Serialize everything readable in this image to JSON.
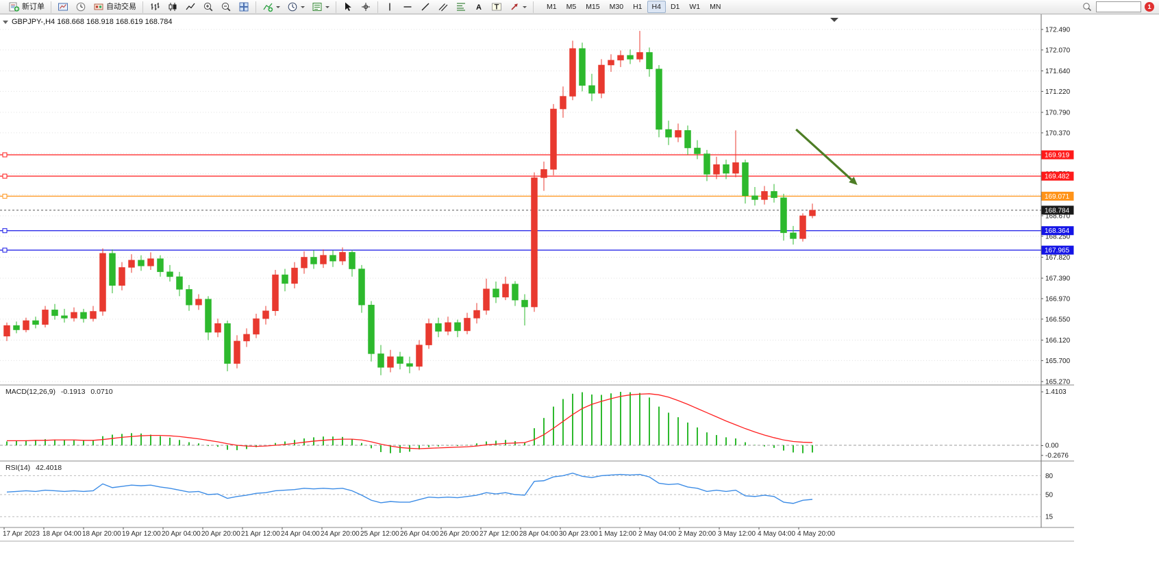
{
  "toolbar": {
    "groups": [
      {
        "items": [
          {
            "name": "new-order-button",
            "icon": "new-order-icon",
            "label": "新订单"
          }
        ]
      },
      {
        "items": [
          {
            "name": "charts-button",
            "icon": "chart-window-icon"
          },
          {
            "name": "market-watch-button",
            "icon": "market-watch-icon"
          },
          {
            "name": "autotrade-button",
            "icon": "autotrade-icon",
            "label": "自动交易"
          }
        ]
      },
      {
        "items": [
          {
            "name": "bar-chart-button",
            "icon": "bar-chart-icon"
          },
          {
            "name": "candlestick-chart-button",
            "icon": "candle-chart-icon"
          },
          {
            "name": "line-chart-button",
            "icon": "line-chart-icon"
          },
          {
            "name": "zoom-in-button",
            "icon": "zoom-in-icon"
          },
          {
            "name": "zoom-out-button",
            "icon": "zoom-out-icon"
          },
          {
            "name": "tile-windows-button",
            "icon": "tile-windows-icon"
          }
        ]
      },
      {
        "items": [
          {
            "name": "indicators-button",
            "icon": "indicators-icon",
            "dropdown": true
          },
          {
            "name": "periods-button",
            "icon": "periods-icon",
            "dropdown": true
          },
          {
            "name": "templates-button",
            "icon": "templates-icon",
            "dropdown": true
          }
        ]
      },
      {
        "items": [
          {
            "name": "cursor-button",
            "icon": "cursor-icon"
          },
          {
            "name": "crosshair-button",
            "icon": "crosshair-icon"
          }
        ]
      },
      {
        "items": [
          {
            "name": "vertical-line-button",
            "icon": "vertical-line-icon"
          },
          {
            "name": "horizontal-line-button",
            "icon": "horizontal-line-icon"
          },
          {
            "name": "trendline-button",
            "icon": "trendline-icon"
          },
          {
            "name": "channel-button",
            "icon": "channel-icon"
          },
          {
            "name": "fibonacci-button",
            "icon": "fibonacci-icon"
          },
          {
            "name": "text-button",
            "icon": "text-icon"
          },
          {
            "name": "text-label-button",
            "icon": "text-label-icon"
          },
          {
            "name": "arrows-button",
            "icon": "arrows-icon",
            "dropdown": true
          }
        ]
      }
    ],
    "timeframes": [
      "M1",
      "M5",
      "M15",
      "M30",
      "H1",
      "H4",
      "D1",
      "W1",
      "MN"
    ],
    "active_timeframe": "H4",
    "search_placeholder": "",
    "notification_count": "1"
  },
  "chart_data": [
    {
      "type": "candlestick",
      "title": "GBPJPY-,H4",
      "symbol_ohlc_label": "GBPJPY-,H4 168.668 168.918 168.619 168.784",
      "timeframe": "H4",
      "up_color": "#e8392f",
      "down_color": "#2db92d",
      "ylim": [
        165.17,
        172.8
      ],
      "y_ticks": [
        172.49,
        172.07,
        171.64,
        171.22,
        170.79,
        170.37,
        169.95,
        169.53,
        169.1,
        168.67,
        168.25,
        167.82,
        167.39,
        166.97,
        166.55,
        166.12,
        165.7,
        165.27
      ],
      "x_labels": [
        "17 Apr 2023",
        "18 Apr 04:00",
        "18 Apr 20:00",
        "19 Apr 12:00",
        "20 Apr 04:00",
        "20 Apr 20:00",
        "21 Apr 12:00",
        "24 Apr 04:00",
        "24 Apr 20:00",
        "25 Apr 12:00",
        "26 Apr 04:00",
        "26 Apr 20:00",
        "27 Apr 12:00",
        "28 Apr 04:00",
        "30 Apr 23:00",
        "1 May 12:00",
        "2 May 04:00",
        "2 May 20:00",
        "3 May 12:00",
        "4 May 04:00",
        "4 May 20:00"
      ],
      "ohlc": [
        [
          166.2,
          166.48,
          166.1,
          166.42
        ],
        [
          166.42,
          166.5,
          166.26,
          166.33
        ],
        [
          166.33,
          166.58,
          166.28,
          166.52
        ],
        [
          166.52,
          166.6,
          166.36,
          166.44
        ],
        [
          166.44,
          166.82,
          166.38,
          166.74
        ],
        [
          166.74,
          166.86,
          166.54,
          166.62
        ],
        [
          166.62,
          166.76,
          166.48,
          166.57
        ],
        [
          166.57,
          166.79,
          166.5,
          166.69
        ],
        [
          166.69,
          166.76,
          166.48,
          166.56
        ],
        [
          166.56,
          166.82,
          166.5,
          166.71
        ],
        [
          166.71,
          168.0,
          166.62,
          167.9
        ],
        [
          167.9,
          167.98,
          167.08,
          167.24
        ],
        [
          167.24,
          167.72,
          167.14,
          167.61
        ],
        [
          167.61,
          167.88,
          167.5,
          167.76
        ],
        [
          167.76,
          167.86,
          167.54,
          167.64
        ],
        [
          167.64,
          167.92,
          167.56,
          167.79
        ],
        [
          167.79,
          167.86,
          167.42,
          167.52
        ],
        [
          167.52,
          167.66,
          167.32,
          167.42
        ],
        [
          167.42,
          167.52,
          167.02,
          167.16
        ],
        [
          167.16,
          167.25,
          166.72,
          166.84
        ],
        [
          166.84,
          167.06,
          166.74,
          166.96
        ],
        [
          166.96,
          167.02,
          166.12,
          166.28
        ],
        [
          166.28,
          166.56,
          166.18,
          166.46
        ],
        [
          166.46,
          166.52,
          165.48,
          165.64
        ],
        [
          165.64,
          166.22,
          165.54,
          166.1
        ],
        [
          166.1,
          166.36,
          165.98,
          166.24
        ],
        [
          166.24,
          166.66,
          166.16,
          166.56
        ],
        [
          166.56,
          166.82,
          166.44,
          166.72
        ],
        [
          166.72,
          167.56,
          166.62,
          167.46
        ],
        [
          167.46,
          167.58,
          167.12,
          167.28
        ],
        [
          167.28,
          167.72,
          167.18,
          167.6
        ],
        [
          167.6,
          167.94,
          167.48,
          167.82
        ],
        [
          167.82,
          167.96,
          167.58,
          167.68
        ],
        [
          167.68,
          167.98,
          167.6,
          167.86
        ],
        [
          167.86,
          167.96,
          167.62,
          167.74
        ],
        [
          167.74,
          168.02,
          167.66,
          167.92
        ],
        [
          167.92,
          167.97,
          167.42,
          167.58
        ],
        [
          167.58,
          167.66,
          166.68,
          166.84
        ],
        [
          166.84,
          166.92,
          165.68,
          165.84
        ],
        [
          165.84,
          166.02,
          165.4,
          165.56
        ],
        [
          165.56,
          165.92,
          165.46,
          165.78
        ],
        [
          165.78,
          165.88,
          165.52,
          165.64
        ],
        [
          165.64,
          165.78,
          165.44,
          165.58
        ],
        [
          165.58,
          166.12,
          165.5,
          166.02
        ],
        [
          166.02,
          166.56,
          165.94,
          166.46
        ],
        [
          166.46,
          166.58,
          166.18,
          166.3
        ],
        [
          166.3,
          166.6,
          166.22,
          166.48
        ],
        [
          166.48,
          166.54,
          166.18,
          166.31
        ],
        [
          166.31,
          166.68,
          166.24,
          166.57
        ],
        [
          166.57,
          166.88,
          166.46,
          166.73
        ],
        [
          166.73,
          167.38,
          166.64,
          167.17
        ],
        [
          167.17,
          167.32,
          166.88,
          167.0
        ],
        [
          167.0,
          167.42,
          166.94,
          167.27
        ],
        [
          167.27,
          167.33,
          166.82,
          166.94
        ],
        [
          166.94,
          167.06,
          166.42,
          166.8
        ],
        [
          166.8,
          169.56,
          166.7,
          169.45
        ],
        [
          169.45,
          169.78,
          169.18,
          169.62
        ],
        [
          169.62,
          170.96,
          169.5,
          170.86
        ],
        [
          170.86,
          171.32,
          170.68,
          171.12
        ],
        [
          171.12,
          172.26,
          171.04,
          172.1
        ],
        [
          172.1,
          172.22,
          171.22,
          171.34
        ],
        [
          171.34,
          171.58,
          171.02,
          171.18
        ],
        [
          171.18,
          171.88,
          171.08,
          171.76
        ],
        [
          171.76,
          171.98,
          171.62,
          171.86
        ],
        [
          171.86,
          172.06,
          171.72,
          171.96
        ],
        [
          171.96,
          172.08,
          171.78,
          171.88
        ],
        [
          171.88,
          172.46,
          171.82,
          172.02
        ],
        [
          172.02,
          172.12,
          171.52,
          171.68
        ],
        [
          171.68,
          171.76,
          170.28,
          170.44
        ],
        [
          170.44,
          170.62,
          170.12,
          170.28
        ],
        [
          170.28,
          170.56,
          170.18,
          170.42
        ],
        [
          170.42,
          170.52,
          169.92,
          170.06
        ],
        [
          170.06,
          170.22,
          169.83,
          169.94
        ],
        [
          169.94,
          170.02,
          169.38,
          169.52
        ],
        [
          169.52,
          169.88,
          169.42,
          169.72
        ],
        [
          169.72,
          169.82,
          169.42,
          169.54
        ],
        [
          169.54,
          170.42,
          169.46,
          169.76
        ],
        [
          169.76,
          169.82,
          168.92,
          169.08
        ],
        [
          169.08,
          169.26,
          168.88,
          169.0
        ],
        [
          169.0,
          169.28,
          168.9,
          169.17
        ],
        [
          169.17,
          169.32,
          168.94,
          169.04
        ],
        [
          169.04,
          169.12,
          168.16,
          168.32
        ],
        [
          168.32,
          168.46,
          168.08,
          168.2
        ],
        [
          168.2,
          168.72,
          168.14,
          168.67
        ],
        [
          168.668,
          168.918,
          168.619,
          168.784
        ]
      ],
      "hlines": [
        {
          "price": 169.919,
          "color": "#ff1a1a",
          "kind": "resistance"
        },
        {
          "price": 169.482,
          "color": "#ff1a1a",
          "kind": "resistance"
        },
        {
          "price": 169.071,
          "color": "#ff9318",
          "kind": "pivot"
        },
        {
          "price": 168.364,
          "color": "#1414e6",
          "kind": "support"
        },
        {
          "price": 167.965,
          "color": "#1414e6",
          "kind": "support"
        }
      ],
      "current_price": {
        "value": 168.784,
        "color": "#1a1a1a"
      },
      "arrow_annotation": {
        "from": {
          "bar": 82.3,
          "price": 170.44
        },
        "to": {
          "bar": 88.7,
          "price": 169.3
        },
        "color": "#4d7d25"
      }
    },
    {
      "type": "bar",
      "name": "MACD(12,26,9)",
      "values_label": [
        "-0.1913",
        "0.0710"
      ],
      "histogram_color": "#2db92d",
      "signal_color": "#ff2020",
      "y_labels": [
        "1.4103",
        "0.00",
        "-0.2676"
      ],
      "max": 1.4103,
      "min": -0.2676,
      "histogram": [
        0.1,
        0.12,
        0.13,
        0.14,
        0.16,
        0.15,
        0.14,
        0.13,
        0.12,
        0.13,
        0.24,
        0.28,
        0.3,
        0.32,
        0.31,
        0.28,
        0.24,
        0.2,
        0.14,
        0.08,
        0.05,
        -0.02,
        -0.04,
        -0.12,
        -0.13,
        -0.1,
        -0.05,
        0.0,
        0.06,
        0.1,
        0.14,
        0.18,
        0.21,
        0.23,
        0.23,
        0.22,
        0.17,
        0.06,
        -0.08,
        -0.18,
        -0.21,
        -0.2,
        -0.17,
        -0.11,
        -0.05,
        -0.03,
        -0.01,
        -0.02,
        0.01,
        0.05,
        0.1,
        0.12,
        0.14,
        0.11,
        0.08,
        0.45,
        0.72,
        1.02,
        1.22,
        1.36,
        1.4,
        1.34,
        1.33,
        1.37,
        1.41,
        1.4,
        1.38,
        1.26,
        1.02,
        0.86,
        0.74,
        0.6,
        0.47,
        0.34,
        0.27,
        0.21,
        0.18,
        0.08,
        0.01,
        -0.03,
        -0.07,
        -0.14,
        -0.19,
        -0.21,
        -0.1913
      ],
      "signal": [
        0.12,
        0.12,
        0.12,
        0.13,
        0.13,
        0.14,
        0.14,
        0.14,
        0.13,
        0.13,
        0.15,
        0.18,
        0.21,
        0.23,
        0.25,
        0.26,
        0.26,
        0.25,
        0.23,
        0.2,
        0.17,
        0.13,
        0.09,
        0.04,
        0.0,
        -0.02,
        -0.03,
        -0.02,
        0.0,
        0.02,
        0.05,
        0.08,
        0.11,
        0.13,
        0.15,
        0.16,
        0.16,
        0.14,
        0.09,
        0.03,
        -0.02,
        -0.06,
        -0.08,
        -0.09,
        -0.08,
        -0.07,
        -0.06,
        -0.05,
        -0.04,
        -0.02,
        0.01,
        0.03,
        0.05,
        0.06,
        0.07,
        0.15,
        0.28,
        0.45,
        0.63,
        0.81,
        0.97,
        1.08,
        1.16,
        1.23,
        1.29,
        1.33,
        1.35,
        1.36,
        1.33,
        1.27,
        1.18,
        1.08,
        0.97,
        0.86,
        0.75,
        0.64,
        0.54,
        0.44,
        0.35,
        0.27,
        0.2,
        0.14,
        0.1,
        0.08,
        0.071
      ]
    },
    {
      "type": "line",
      "name": "RSI(14)",
      "value_label": "42.4018",
      "line_color": "#3c8ce6",
      "levels": [
        80,
        50,
        15
      ],
      "range": [
        0,
        100
      ],
      "values": [
        54,
        55,
        56,
        55,
        57,
        56,
        55,
        56,
        55,
        56,
        67,
        61,
        63,
        65,
        64,
        65,
        62,
        60,
        57,
        54,
        55,
        50,
        51,
        44,
        47,
        49,
        52,
        53,
        56,
        57,
        58,
        60,
        59,
        60,
        59,
        60,
        56,
        49,
        41,
        37,
        39,
        38,
        38,
        42,
        46,
        45,
        46,
        45,
        47,
        49,
        53,
        51,
        53,
        50,
        49,
        71,
        72,
        78,
        80,
        84,
        79,
        77,
        80,
        81,
        82,
        81,
        82,
        78,
        68,
        66,
        67,
        62,
        60,
        55,
        57,
        55,
        57,
        48,
        47,
        49,
        47,
        38,
        36,
        41,
        42.4
      ]
    }
  ]
}
